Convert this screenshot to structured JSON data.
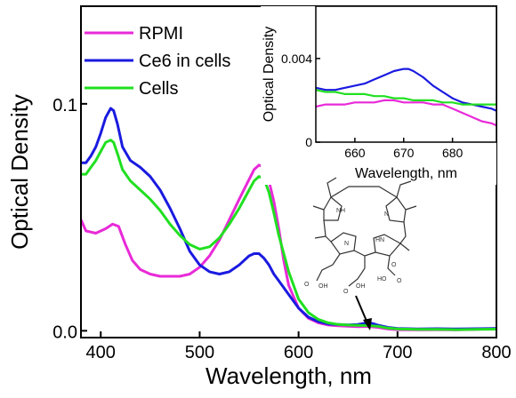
{
  "chart_data": [
    {
      "type": "line",
      "xlabel": "Wavelength, nm",
      "ylabel": "Optical Density",
      "xlim": [
        380,
        800
      ],
      "ylim": [
        -0.003,
        0.143
      ],
      "xticks": [
        400,
        500,
        600,
        700,
        800
      ],
      "yticks": [
        0.0,
        0.1
      ],
      "ytick_labels": [
        "0.0",
        "0.1"
      ],
      "legend_position": "top-left",
      "grid": false,
      "series": [
        {
          "name": "RPMI",
          "color": "#e82ad8",
          "x": [
            380,
            385,
            395,
            405,
            412,
            418,
            425,
            432,
            440,
            450,
            460,
            470,
            480,
            490,
            500,
            510,
            520,
            530,
            540,
            548,
            555,
            560,
            565,
            570,
            575,
            580,
            585,
            590,
            600,
            610,
            620,
            630,
            640,
            650,
            660,
            670,
            680,
            690,
            700,
            720,
            740,
            760,
            780,
            800
          ],
          "y": [
            0.049,
            0.044,
            0.043,
            0.045,
            0.047,
            0.046,
            0.038,
            0.031,
            0.027,
            0.025,
            0.024,
            0.024,
            0.024,
            0.025,
            0.028,
            0.033,
            0.04,
            0.049,
            0.058,
            0.065,
            0.071,
            0.073,
            0.072,
            0.066,
            0.057,
            0.045,
            0.031,
            0.02,
            0.01,
            0.0055,
            0.0035,
            0.0025,
            0.0022,
            0.002,
            0.0018,
            0.0019,
            0.0015,
            0.0008,
            0.0005,
            0.0004,
            0.0005,
            0.0004,
            0.0006,
            0.001
          ]
        },
        {
          "name": "Ce6 in cells",
          "color": "#1a1ae0",
          "x": [
            380,
            385,
            390,
            395,
            400,
            405,
            410,
            413,
            417,
            422,
            430,
            440,
            450,
            460,
            470,
            480,
            490,
            500,
            510,
            520,
            530,
            540,
            550,
            555,
            560,
            565,
            570,
            575,
            580,
            590,
            600,
            610,
            620,
            630,
            640,
            650,
            660,
            665,
            670,
            675,
            680,
            690,
            700,
            720,
            740,
            760,
            780,
            800
          ],
          "y": [
            0.074,
            0.074,
            0.077,
            0.081,
            0.087,
            0.094,
            0.098,
            0.097,
            0.091,
            0.081,
            0.075,
            0.072,
            0.068,
            0.062,
            0.054,
            0.045,
            0.035,
            0.029,
            0.026,
            0.025,
            0.026,
            0.029,
            0.033,
            0.034,
            0.034,
            0.032,
            0.029,
            0.025,
            0.022,
            0.016,
            0.01,
            0.006,
            0.004,
            0.003,
            0.0028,
            0.0026,
            0.0028,
            0.0032,
            0.0035,
            0.0032,
            0.0025,
            0.0015,
            0.001,
            0.0008,
            0.0009,
            0.0008,
            0.0009,
            0.001
          ]
        },
        {
          "name": "Cells",
          "color": "#20e020",
          "x": [
            380,
            385,
            390,
            395,
            400,
            405,
            410,
            413,
            417,
            422,
            430,
            440,
            450,
            460,
            470,
            480,
            490,
            500,
            510,
            520,
            530,
            540,
            550,
            555,
            560,
            565,
            570,
            575,
            580,
            590,
            600,
            610,
            620,
            630,
            640,
            650,
            660,
            670,
            680,
            690,
            700,
            720,
            740,
            760,
            780,
            800
          ],
          "y": [
            0.069,
            0.069,
            0.072,
            0.075,
            0.079,
            0.083,
            0.084,
            0.083,
            0.078,
            0.071,
            0.066,
            0.062,
            0.058,
            0.053,
            0.047,
            0.042,
            0.038,
            0.036,
            0.037,
            0.041,
            0.047,
            0.054,
            0.062,
            0.066,
            0.068,
            0.067,
            0.061,
            0.052,
            0.042,
            0.026,
            0.014,
            0.008,
            0.005,
            0.0035,
            0.0028,
            0.0025,
            0.0024,
            0.0023,
            0.002,
            0.0012,
            0.0008,
            0.0006,
            0.0006,
            0.0005,
            0.0006,
            0.0007
          ]
        }
      ]
    },
    {
      "type": "line",
      "xlabel": "Wavelength, nm",
      "ylabel": "Optical Density",
      "xlim": [
        652,
        689
      ],
      "ylim": [
        0,
        0.0065
      ],
      "xticks": [
        660,
        670,
        680
      ],
      "yticks": [
        0,
        0.004
      ],
      "ytick_labels": [
        "0",
        "0.004"
      ],
      "series": [
        {
          "name": "RPMI",
          "color": "#e82ad8",
          "x": [
            652,
            654,
            656,
            658,
            660,
            662,
            664,
            666,
            668,
            670,
            672,
            674,
            676,
            678,
            680,
            682,
            684,
            686,
            688,
            689
          ],
          "y": [
            0.0017,
            0.0018,
            0.0018,
            0.0018,
            0.0019,
            0.0019,
            0.0019,
            0.002,
            0.002,
            0.0019,
            0.0019,
            0.0019,
            0.0018,
            0.0018,
            0.0016,
            0.0014,
            0.0012,
            0.001,
            0.0009,
            0.0008
          ]
        },
        {
          "name": "Ce6 in cells",
          "color": "#1a1ae0",
          "x": [
            652,
            654,
            656,
            658,
            660,
            662,
            664,
            666,
            668,
            670,
            671,
            672,
            674,
            676,
            678,
            680,
            682,
            684,
            686,
            688,
            689
          ],
          "y": [
            0.0026,
            0.0025,
            0.0025,
            0.0026,
            0.0027,
            0.0028,
            0.003,
            0.0032,
            0.0034,
            0.0035,
            0.0035,
            0.0034,
            0.0031,
            0.0027,
            0.0024,
            0.0021,
            0.0019,
            0.0018,
            0.0017,
            0.0016,
            0.0015
          ]
        },
        {
          "name": "Cells",
          "color": "#20e020",
          "x": [
            652,
            654,
            656,
            658,
            660,
            662,
            664,
            666,
            668,
            670,
            672,
            674,
            676,
            678,
            680,
            682,
            684,
            686,
            688,
            689
          ],
          "y": [
            0.0025,
            0.0024,
            0.0024,
            0.0023,
            0.0023,
            0.0023,
            0.0022,
            0.0022,
            0.0021,
            0.0021,
            0.002,
            0.002,
            0.002,
            0.0019,
            0.0019,
            0.0018,
            0.0018,
            0.0018,
            0.0018,
            0.0018
          ]
        }
      ]
    }
  ],
  "molecule": {
    "atom_nh": "NH",
    "atom_n": "N",
    "atom_hn": "HN",
    "atom_oh1": "OH",
    "atom_oh2": "OH",
    "atom_o1": "O",
    "atom_o2": "O",
    "atom_oh3": "HO",
    "atom_o3": "O",
    "atom_o4": "O"
  }
}
